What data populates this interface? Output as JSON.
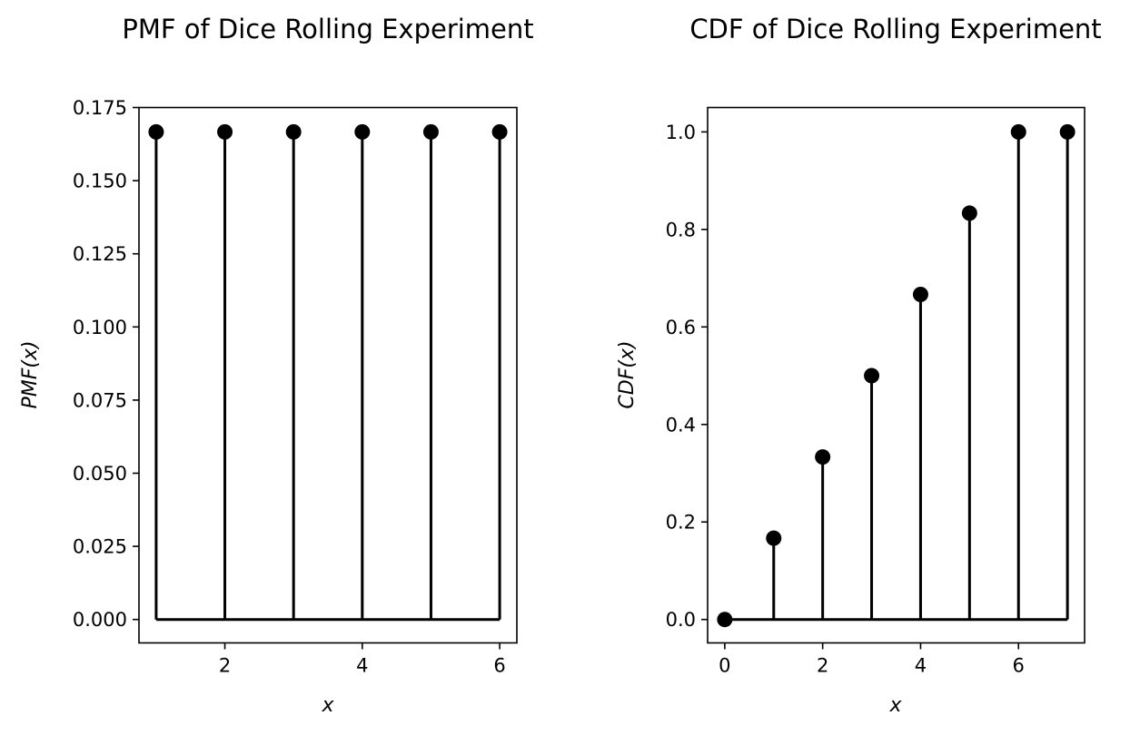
{
  "colors": {
    "stem": "#000000",
    "marker": "#000000",
    "axes": "#000000",
    "background": "#ffffff"
  },
  "chart_data": [
    {
      "type": "stem",
      "title": "PMF of Dice Rolling Experiment",
      "xlabel": "x",
      "ylabel": "PMF(x)",
      "x": [
        1,
        2,
        3,
        4,
        5,
        6
      ],
      "values": [
        0.16667,
        0.16667,
        0.16667,
        0.16667,
        0.16667,
        0.16667
      ],
      "baseline": 0,
      "xlim": [
        0.75,
        6.25
      ],
      "ylim": [
        -0.008,
        0.175
      ],
      "xticks": [
        2,
        4,
        6
      ],
      "xticklabels": [
        "2",
        "4",
        "6"
      ],
      "yticks": [
        0,
        0.025,
        0.05,
        0.075,
        0.1,
        0.125,
        0.15,
        0.175
      ],
      "yticklabels": [
        "0.000",
        "0.025",
        "0.050",
        "0.075",
        "0.100",
        "0.125",
        "0.150",
        "0.175"
      ],
      "grid": false,
      "legend": "none"
    },
    {
      "type": "stem",
      "title": "CDF of Dice Rolling Experiment",
      "xlabel": "x",
      "ylabel": "CDF(x)",
      "x": [
        0,
        1,
        2,
        3,
        4,
        5,
        6,
        7
      ],
      "values": [
        0,
        0.16667,
        0.33333,
        0.5,
        0.66667,
        0.83333,
        1.0,
        1.0
      ],
      "baseline": 0,
      "xlim": [
        -0.35,
        7.35
      ],
      "ylim": [
        -0.048,
        1.05
      ],
      "xticks": [
        0,
        2,
        4,
        6
      ],
      "xticklabels": [
        "0",
        "2",
        "4",
        "6"
      ],
      "yticks": [
        0,
        0.2,
        0.4,
        0.6,
        0.8,
        1.0
      ],
      "yticklabels": [
        "0.0",
        "0.2",
        "0.4",
        "0.6",
        "0.8",
        "1.0"
      ],
      "grid": false,
      "legend": "none"
    }
  ]
}
